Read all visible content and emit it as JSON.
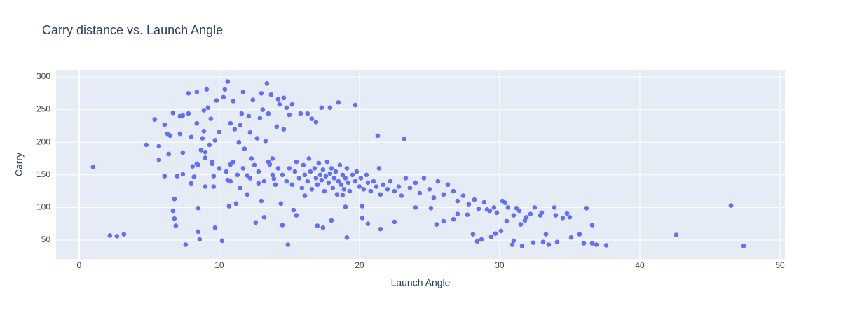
{
  "chart_data": {
    "type": "scatter",
    "title": "Carry distance vs. Launch Angle",
    "x_label": "Launch Angle",
    "y_label": "Carry",
    "color": "#636efa",
    "background": "#e5ecf6",
    "grid": true,
    "xlim": [
      -1.64,
      50.35
    ],
    "ylim": [
      21,
      310.7
    ],
    "xticks": [
      0,
      10,
      20,
      30,
      40,
      50
    ],
    "yticks": [
      50,
      100,
      150,
      200,
      250,
      300
    ],
    "x": [
      1.0,
      2.2,
      2.7,
      3.2,
      4.8,
      5.4,
      5.7,
      5.7,
      6.1,
      6.1,
      6.3,
      6.4,
      6.5,
      6.7,
      6.7,
      6.8,
      6.8,
      6.9,
      7.0,
      7.2,
      7.2,
      7.4,
      7.4,
      7.6,
      7.4,
      7.8,
      7.8,
      8.0,
      8.0,
      8.1,
      8.2,
      8.4,
      8.4,
      8.4,
      8.5,
      8.5,
      8.6,
      8.7,
      8.8,
      8.9,
      8.9,
      9.0,
      9.0,
      9.1,
      9.2,
      9.3,
      9.4,
      9.5,
      9.6,
      9.6,
      9.7,
      9.7,
      9.8,
      10.0,
      10.2,
      10.3,
      10.4,
      10.6,
      10.6,
      10.7,
      10.8,
      10.8,
      11.0,
      11.1,
      11.2,
      11.4,
      11.5,
      11.6,
      11.7,
      11.8,
      12.0,
      12.1,
      12.2,
      12.3,
      12.4,
      12.6,
      12.7,
      12.8,
      12.9,
      13.0,
      13.1,
      13.2,
      13.3,
      13.4,
      13.5,
      13.6,
      13.7,
      13.8,
      13.9,
      14.1,
      14.2,
      14.3,
      14.4,
      14.5,
      14.6,
      14.6,
      14.8,
      14.9,
      15.0,
      15.2,
      15.3,
      15.5,
      15.8,
      16.1,
      16.3,
      16.6,
      16.9,
      17.0,
      17.3,
      17.4,
      17.9,
      18.0,
      18.5,
      18.8,
      19.0,
      19.1,
      19.7,
      20.2,
      20.2,
      20.6,
      21.3,
      21.5,
      22.5,
      23.2,
      24.0,
      25.1,
      25.5,
      26.0,
      26.7,
      27.0,
      27.7,
      28.1,
      28.4,
      28.7,
      29.1,
      29.4,
      29.6,
      29.7,
      30.1,
      30.4,
      30.5,
      30.9,
      31.0,
      31.2,
      31.5,
      31.6,
      31.8,
      32.2,
      32.4,
      32.9,
      33.1,
      33.3,
      33.5,
      33.9,
      34.1,
      34.5,
      34.8,
      35.1,
      35.7,
      36.0,
      36.2,
      36.6,
      36.6,
      36.9,
      37.6,
      42.6,
      46.5,
      47.4,
      14.5,
      14.8,
      15.0,
      15.2,
      15.4,
      15.5,
      15.7,
      15.9,
      16.0,
      16.1,
      16.3,
      16.4,
      16.5,
      16.6,
      16.8,
      16.9,
      17.0,
      17.1,
      17.2,
      17.3,
      17.4,
      17.5,
      17.6,
      17.7,
      17.8,
      17.9,
      18.0,
      18.1,
      18.2,
      18.3,
      18.4,
      18.5,
      18.6,
      18.7,
      18.8,
      18.9,
      19.0,
      19.1,
      19.2,
      19.3,
      19.5,
      19.7,
      19.8,
      20.0,
      20.1,
      20.3,
      20.5,
      20.6,
      20.8,
      21.0,
      21.2,
      21.4,
      21.5,
      21.7,
      22.0,
      22.2,
      22.5,
      22.8,
      23.0,
      23.3,
      23.6,
      24.0,
      24.3,
      24.6,
      25.0,
      25.3,
      25.6,
      26.0,
      26.3,
      26.7,
      27.0,
      27.4,
      27.8,
      28.2,
      28.5,
      28.9,
      29.3,
      29.8,
      30.2,
      30.6,
      31.0,
      31.4,
      31.9,
      32.5,
      33.0,
      34.0,
      35.0,
      10.5,
      11.0,
      11.3,
      11.7,
      12.2,
      12.5,
      12.8,
      13.2,
      13.5,
      13.8,
      14.0,
      14.2,
      9.5,
      10.0,
      9.0,
      8.5,
      12.0,
      13.0,
      11.5,
      10.8
    ],
    "y": [
      162,
      57,
      56,
      59,
      196,
      235,
      173,
      194,
      227,
      148,
      213,
      182,
      210,
      245,
      95,
      113,
      83,
      72,
      148,
      240,
      213,
      184,
      151,
      43,
      241,
      244,
      275,
      208,
      137,
      163,
      147,
      277,
      229,
      167,
      99,
      63,
      51,
      188,
      206,
      249,
      217,
      132,
      176,
      281,
      253,
      196,
      236,
      167,
      132,
      148,
      203,
      69,
      264,
      216,
      49,
      269,
      281,
      293,
      142,
      102,
      229,
      166,
      263,
      220,
      106,
      200,
      226,
      244,
      277,
      190,
      149,
      240,
      215,
      175,
      265,
      77,
      206,
      137,
      237,
      275,
      250,
      85,
      202,
      290,
      244,
      166,
      273,
      175,
      144,
      224,
      266,
      258,
      106,
      73,
      268,
      220,
      253,
      43,
      242,
      258,
      96,
      88,
      244,
      118,
      244,
      236,
      231,
      72,
      253,
      69,
      253,
      80,
      261,
      119,
      101,
      54,
      257,
      84,
      102,
      75,
      210,
      67,
      78,
      205,
      100,
      99,
      74,
      79,
      82,
      90,
      89,
      59,
      48,
      51,
      97,
      55,
      100,
      60,
      64,
      107,
      79,
      43,
      49,
      99,
      74,
      41,
      80,
      90,
      46,
      88,
      47,
      59,
      43,
      100,
      47,
      84,
      91,
      54,
      59,
      45,
      99,
      45,
      73,
      43,
      42,
      58,
      103,
      41,
      150,
      140,
      160,
      135,
      155,
      170,
      145,
      130,
      165,
      150,
      140,
      175,
      155,
      128,
      160,
      145,
      135,
      168,
      150,
      142,
      158,
      125,
      148,
      170,
      138,
      152,
      160,
      130,
      145,
      155,
      120,
      140,
      165,
      135,
      150,
      128,
      145,
      160,
      138,
      125,
      150,
      140,
      155,
      132,
      145,
      128,
      150,
      138,
      125,
      140,
      132,
      160,
      120,
      135,
      128,
      140,
      125,
      132,
      118,
      145,
      130,
      138,
      122,
      145,
      128,
      115,
      140,
      120,
      135,
      125,
      110,
      118,
      105,
      112,
      98,
      108,
      95,
      92,
      110,
      100,
      88,
      95,
      85,
      100,
      92,
      88,
      85,
      155,
      170,
      150,
      160,
      145,
      165,
      155,
      140,
      170,
      150,
      135,
      160,
      170,
      160,
      185,
      165,
      120,
      110,
      130,
      140
    ]
  }
}
